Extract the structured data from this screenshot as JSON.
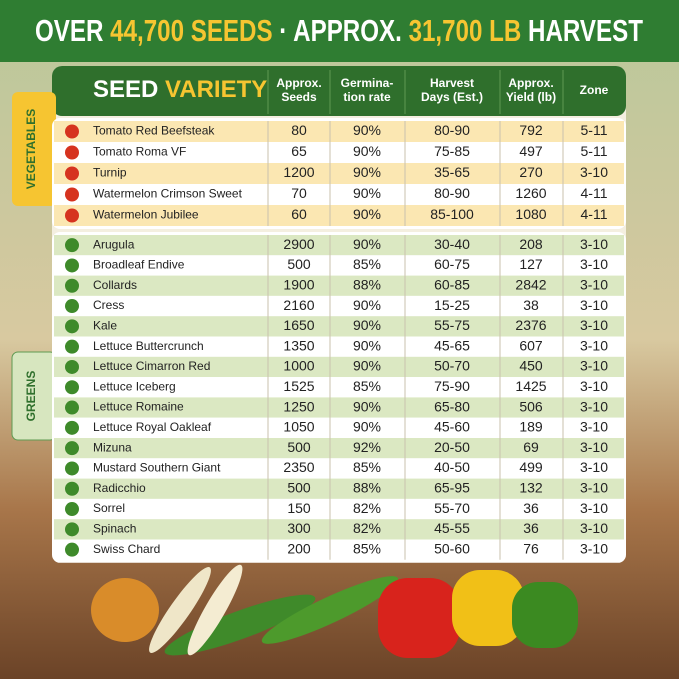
{
  "header": {
    "title": [
      "OVER",
      "44,700 SEEDS",
      "· APPROX.",
      "31,700 LB",
      "HARVEST"
    ]
  },
  "table": {
    "name_header": [
      "SEED",
      "VARIETY"
    ],
    "columns": [
      [
        "Approx.",
        "Seeds"
      ],
      [
        "Germina-",
        "tion rate"
      ],
      [
        "Harvest",
        "Days (Est.)"
      ],
      [
        "Approx.",
        "Yield (lb)"
      ],
      [
        "Zone"
      ]
    ],
    "groups": [
      {
        "label": "VEGETABLES",
        "rows": [
          [
            "Tomato Red Beefsteak",
            "80",
            "90%",
            "80-90",
            "792",
            "5-11"
          ],
          [
            "Tomato Roma VF",
            "65",
            "90%",
            "75-85",
            "497",
            "5-11"
          ],
          [
            "Turnip",
            "1200",
            "90%",
            "35-65",
            "270",
            "3-10"
          ],
          [
            "Watermelon Crimson Sweet",
            "70",
            "90%",
            "80-90",
            "1260",
            "4-11"
          ],
          [
            "Watermelon Jubilee",
            "60",
            "90%",
            "85-100",
            "1080",
            "4-11"
          ]
        ]
      },
      {
        "label": "GREENS",
        "rows": [
          [
            "Arugula",
            "2900",
            "90%",
            "30-40",
            "208",
            "3-10"
          ],
          [
            "Broadleaf Endive",
            "500",
            "85%",
            "60-75",
            "127",
            "3-10"
          ],
          [
            "Collards",
            "1900",
            "88%",
            "60-85",
            "2842",
            "3-10"
          ],
          [
            "Cress",
            "2160",
            "90%",
            "15-25",
            "38",
            "3-10"
          ],
          [
            "Kale",
            "1650",
            "90%",
            "55-75",
            "2376",
            "3-10"
          ],
          [
            "Lettuce Buttercrunch",
            "1350",
            "90%",
            "45-65",
            "607",
            "3-10"
          ],
          [
            "Lettuce Cimarron Red",
            "1000",
            "90%",
            "50-70",
            "450",
            "3-10"
          ],
          [
            "Lettuce Iceberg",
            "1525",
            "85%",
            "75-90",
            "1425",
            "3-10"
          ],
          [
            "Lettuce Romaine",
            "1250",
            "90%",
            "65-80",
            "506",
            "3-10"
          ],
          [
            "Lettuce Royal Oakleaf",
            "1050",
            "90%",
            "45-60",
            "189",
            "3-10"
          ],
          [
            "Mizuna",
            "500",
            "92%",
            "20-50",
            "69",
            "3-10"
          ],
          [
            "Mustard Southern Giant",
            "2350",
            "85%",
            "40-50",
            "499",
            "3-10"
          ],
          [
            "Radicchio",
            "500",
            "88%",
            "65-95",
            "132",
            "3-10"
          ],
          [
            "Sorrel",
            "150",
            "82%",
            "55-70",
            "36",
            "3-10"
          ],
          [
            "Spinach",
            "300",
            "82%",
            "45-55",
            "36",
            "3-10"
          ],
          [
            "Swiss Chard",
            "200",
            "85%",
            "50-60",
            "76",
            "3-10"
          ]
        ]
      }
    ]
  }
}
